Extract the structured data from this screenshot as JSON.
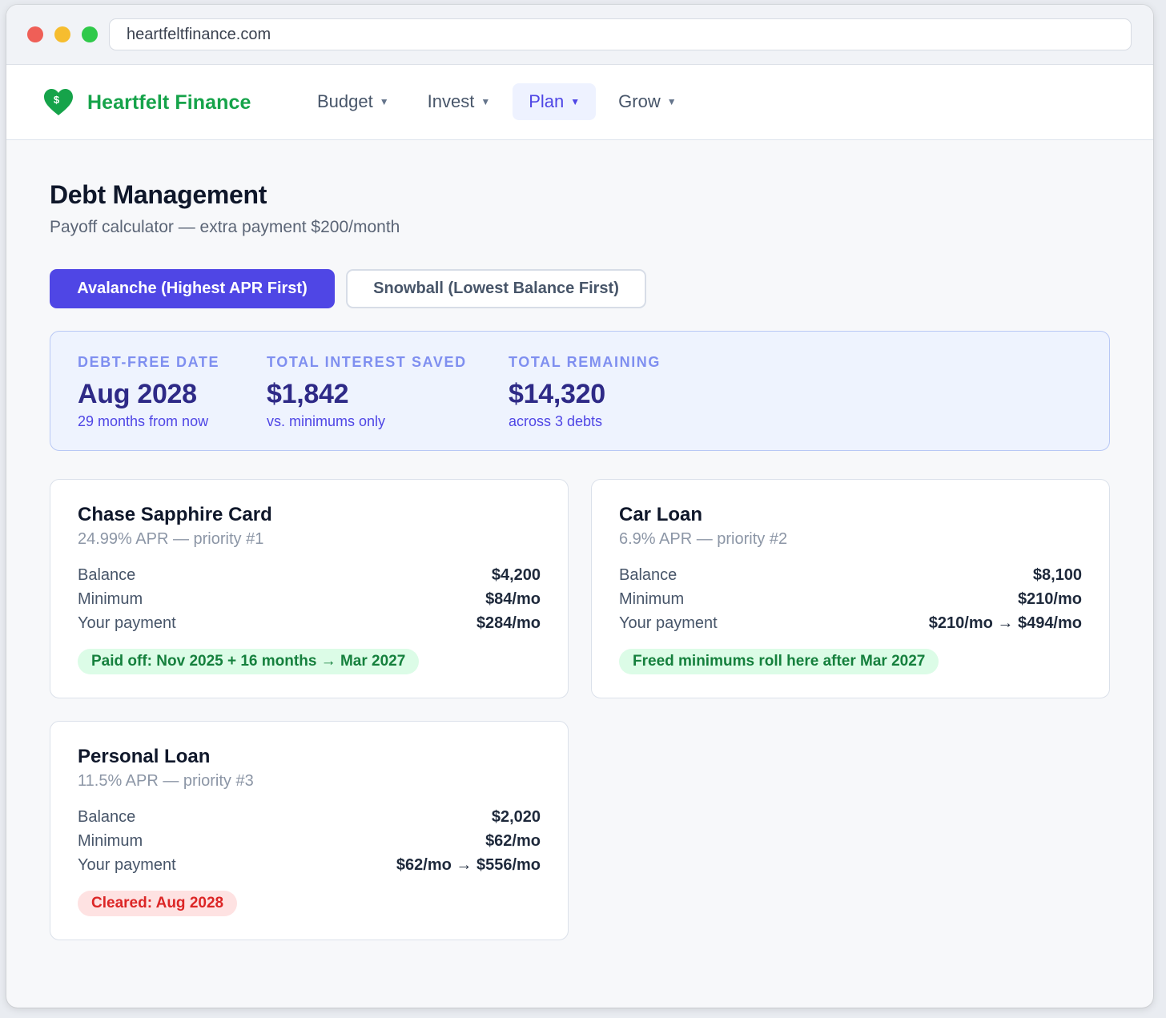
{
  "browser": {
    "url": "heartfeltfinance.com"
  },
  "brand": {
    "name": "Heartfelt Finance",
    "color": "#16a34a",
    "icon": "heart-dollar-icon"
  },
  "nav": {
    "items": [
      {
        "label": "Budget",
        "active": false
      },
      {
        "label": "Invest",
        "active": false
      },
      {
        "label": "Plan",
        "active": true
      },
      {
        "label": "Grow",
        "active": false
      }
    ]
  },
  "page": {
    "title": "Debt Management",
    "subtitle": "Payoff calculator — extra payment $200/month"
  },
  "strategy_tabs": [
    {
      "label": "Avalanche (Highest APR First)",
      "selected": true
    },
    {
      "label": "Snowball (Lowest Balance First)",
      "selected": false
    }
  ],
  "summary": {
    "stats": [
      {
        "label": "DEBT-FREE DATE",
        "value": "Aug 2028",
        "note": "29 months from now"
      },
      {
        "label": "TOTAL INTEREST SAVED",
        "value": "$1,842",
        "note": "vs. minimums only"
      },
      {
        "label": "TOTAL REMAINING",
        "value": "$14,320",
        "note": "across 3 debts"
      }
    ]
  },
  "debts": [
    {
      "name": "Chase Sapphire Card",
      "sub": "24.99% APR — priority #1",
      "rows": [
        {
          "k": "Balance",
          "v": "$4,200"
        },
        {
          "k": "Minimum",
          "v": "$84/mo"
        },
        {
          "k": "Your payment",
          "v": "$284/mo"
        }
      ],
      "badge": "Paid off: Nov 2025 + 16 months → Mar 2027",
      "badge_style": "green"
    },
    {
      "name": "Car Loan",
      "sub": "6.9% APR — priority #2",
      "rows": [
        {
          "k": "Balance",
          "v": "$8,100"
        },
        {
          "k": "Minimum",
          "v": "$210/mo"
        },
        {
          "k": "Your payment",
          "v": "$210/mo → $494/mo"
        }
      ],
      "badge": "Freed minimums roll here after Mar 2027",
      "badge_style": "green"
    },
    {
      "name": "Personal Loan",
      "sub": "11.5% APR — priority #3",
      "rows": [
        {
          "k": "Balance",
          "v": "$2,020"
        },
        {
          "k": "Minimum",
          "v": "$62/mo"
        },
        {
          "k": "Your payment",
          "v": "$62/mo → $556/mo"
        }
      ],
      "badge": "Cleared: Aug 2028",
      "badge_style": "red"
    }
  ],
  "colors": {
    "accent": "#4f46e5",
    "success": "#15803d",
    "danger": "#dc2626"
  }
}
